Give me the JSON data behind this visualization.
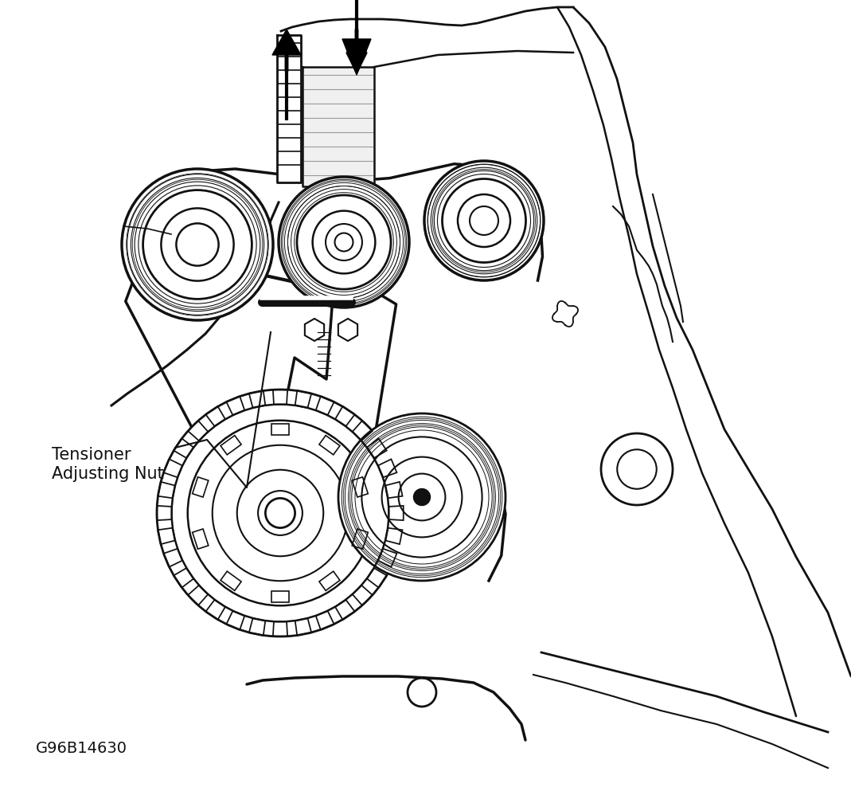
{
  "background_color": "#ffffff",
  "label_tensioner": "Tensioner\nAdjusting Nut",
  "label_code": "G96B14630",
  "text_color": "#111111",
  "line_color": "#111111",
  "figsize": [
    10.69,
    10.04
  ],
  "dpi": 100,
  "xlim": [
    0,
    1069
  ],
  "ylim": [
    0,
    1004
  ]
}
